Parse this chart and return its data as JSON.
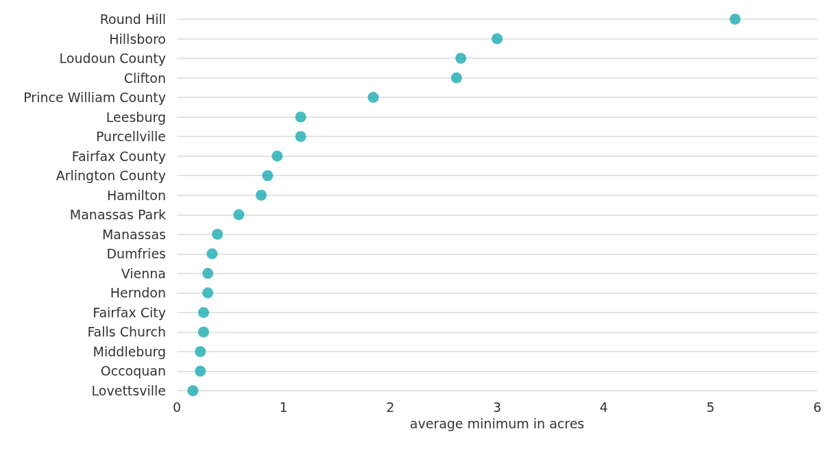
{
  "chart_data": {
    "type": "scatter",
    "orientation": "horizontal",
    "xlabel": "average minimum in acres",
    "categories": [
      "Round Hill",
      "Hillsboro",
      "Loudoun County",
      "Clifton",
      "Prince William County",
      "Leesburg",
      "Purcellville",
      "Fairfax County",
      "Arlington County",
      "Hamilton",
      "Manassas Park",
      "Manassas",
      "Dumfries",
      "Vienna",
      "Herndon",
      "Fairfax City",
      "Falls Church",
      "Middleburg",
      "Occoquan",
      "Lovettsville"
    ],
    "values": [
      5.23,
      3.0,
      2.66,
      2.62,
      1.84,
      1.16,
      1.16,
      0.94,
      0.85,
      0.79,
      0.58,
      0.38,
      0.33,
      0.29,
      0.29,
      0.25,
      0.25,
      0.22,
      0.22,
      0.15
    ],
    "color": "#1aabb0",
    "xlim": [
      0,
      6
    ],
    "xticks": [
      0,
      1,
      2,
      3,
      4,
      5,
      6
    ],
    "grid": "y",
    "marker": "circle"
  }
}
